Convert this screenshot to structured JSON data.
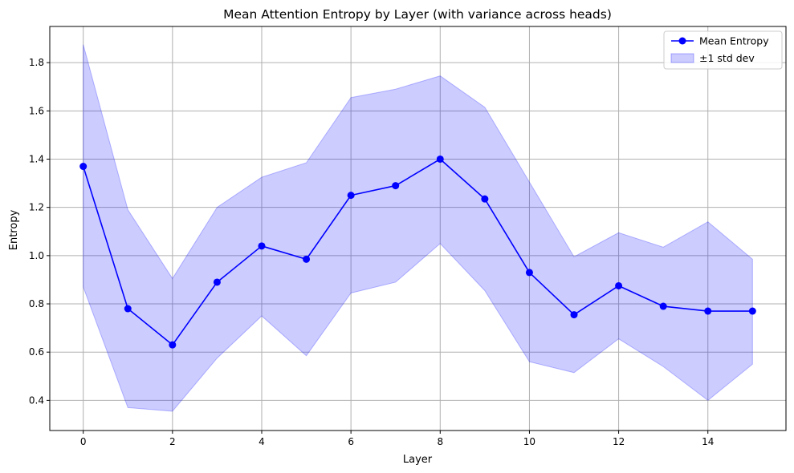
{
  "chart_data": {
    "type": "line",
    "title": "Mean Attention Entropy by Layer (with variance across heads)",
    "xlabel": "Layer",
    "ylabel": "Entropy",
    "xlim": [
      -0.75,
      15.75
    ],
    "ylim": [
      0.275,
      1.95
    ],
    "xticks": [
      0,
      2,
      4,
      6,
      8,
      10,
      12,
      14
    ],
    "yticks": [
      0.4,
      0.6,
      0.8,
      1.0,
      1.2,
      1.4,
      1.6,
      1.8
    ],
    "xtick_labels": [
      "0",
      "2",
      "4",
      "6",
      "8",
      "10",
      "12",
      "14"
    ],
    "ytick_labels": [
      "0.4",
      "0.6",
      "0.8",
      "1.0",
      "1.2",
      "1.4",
      "1.6",
      "1.8"
    ],
    "grid": true,
    "legend_position": "upper right",
    "x": [
      0,
      1,
      2,
      3,
      4,
      5,
      6,
      7,
      8,
      9,
      10,
      11,
      12,
      13,
      14,
      15
    ],
    "series": [
      {
        "name": "Mean Entropy",
        "color": "#0000ff",
        "marker": "circle",
        "values": [
          1.37,
          0.78,
          0.63,
          0.89,
          1.04,
          0.985,
          1.25,
          1.29,
          1.4,
          1.235,
          0.93,
          0.755,
          0.875,
          0.79,
          0.77,
          0.77
        ]
      }
    ],
    "band": {
      "name": "±1 std dev",
      "color": "#0000ff",
      "opacity": 0.2,
      "upper": [
        1.875,
        1.19,
        0.905,
        1.2,
        1.325,
        1.385,
        1.655,
        1.69,
        1.745,
        1.615,
        1.305,
        0.995,
        1.095,
        1.035,
        1.14,
        0.985
      ],
      "lower": [
        0.87,
        0.37,
        0.355,
        0.575,
        0.75,
        0.585,
        0.845,
        0.89,
        1.05,
        0.855,
        0.56,
        0.515,
        0.655,
        0.54,
        0.4,
        0.55
      ]
    }
  }
}
